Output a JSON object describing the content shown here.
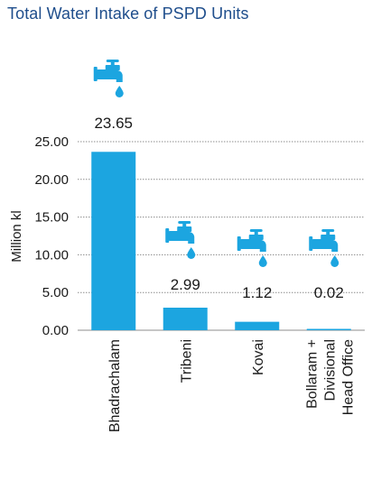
{
  "title": "Total Water Intake of PSPD Units",
  "colors": {
    "bar": "#1ca5e0",
    "title": "#1f4e8c",
    "grid": "#8c8c8c",
    "icon": "#1ca5e0"
  },
  "chart_data": {
    "type": "bar",
    "title": "Total Water Intake of PSPD Units",
    "ylabel": "Million kl",
    "xlabel": "",
    "ylim": [
      0,
      25
    ],
    "yticks": [
      "0.00",
      "5.00",
      "10.00",
      "15.00",
      "20.00",
      "25.00"
    ],
    "grid": true,
    "categories": [
      [
        "Bhadrachalam"
      ],
      [
        "Tribeni"
      ],
      [
        "Kovai"
      ],
      [
        "Bollaram +",
        "Divisional",
        "Head Office"
      ]
    ],
    "values": [
      23.65,
      2.99,
      1.12,
      0.02
    ],
    "value_labels": [
      "23.65",
      "2.99",
      "1.12",
      "0.02"
    ],
    "icon": "water-tap-icon"
  }
}
